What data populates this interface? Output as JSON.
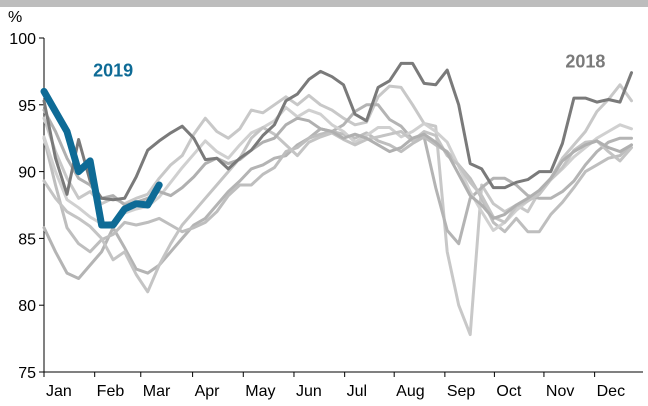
{
  "chart_data": {
    "type": "line",
    "unit_label": "%",
    "ylim": [
      75,
      100
    ],
    "yticks": [
      75,
      80,
      85,
      90,
      95,
      100
    ],
    "xlim": [
      0,
      52
    ],
    "x_unit": "week of year",
    "month_labels": [
      "Jan",
      "Feb",
      "Mar",
      "Apr",
      "May",
      "Jun",
      "Jul",
      "Aug",
      "Sep",
      "Oct",
      "Nov",
      "Dec"
    ],
    "month_positions": [
      0,
      4.4,
      8.4,
      12.9,
      17.3,
      21.7,
      26.1,
      30.4,
      34.8,
      39.1,
      43.4,
      47.8
    ],
    "grid": false,
    "annotations": [
      {
        "text": "2019",
        "color": "#0e6b96",
        "x": 6,
        "y": 97.1
      },
      {
        "text": "2018",
        "color": "#7a7a7a",
        "x": 47,
        "y": 97.8
      }
    ],
    "series": [
      {
        "color": "#0e6b96",
        "width": 7,
        "values": [
          96.0,
          94.5,
          93.0,
          90.0,
          90.8,
          86.0,
          86.0,
          87.2,
          87.6,
          87.5,
          89.0
        ]
      },
      {
        "color": "#7a7a7a",
        "width": 3,
        "values": [
          95.3,
          91.0,
          88.3,
          92.4,
          89.3,
          88.0,
          87.9,
          88.0,
          89.6,
          91.6,
          92.3,
          92.9,
          93.4,
          92.5,
          90.9,
          91.0,
          90.2,
          91.0,
          91.6,
          92.7,
          93.5,
          95.3,
          95.8,
          96.9,
          97.5,
          97.1,
          96.5,
          94.3,
          93.8,
          96.3,
          96.8,
          98.1,
          98.1,
          96.6,
          96.5,
          97.6,
          95.0,
          90.6,
          90.2,
          88.8,
          88.8,
          89.2,
          89.4,
          90.0,
          90.0,
          92.1,
          95.5,
          95.5,
          95.2,
          95.4,
          95.2,
          97.4
        ]
      },
      {
        "color": "#c8c8c8",
        "width": 3,
        "values": [
          94.0,
          91.5,
          89.5,
          88.0,
          88.5,
          87.6,
          88.0,
          87.6,
          88.0,
          88.3,
          89.5,
          90.5,
          91.2,
          92.8,
          94.0,
          93.0,
          92.5,
          93.2,
          94.6,
          94.4,
          95.0,
          95.6,
          95.0,
          95.7,
          95.0,
          94.6,
          94.0,
          93.5,
          93.7,
          95.6,
          96.4,
          96.3,
          95.0,
          93.6,
          93.4,
          84.0,
          80.0,
          77.8,
          89.0,
          87.6,
          87.0,
          87.5,
          87.0,
          88.5,
          89.5,
          91.0,
          92.0,
          93.0,
          94.5,
          95.4,
          96.5,
          95.3
        ]
      },
      {
        "color": "#b4b4b4",
        "width": 3,
        "values": [
          85.8,
          84.0,
          82.4,
          82.0,
          83.0,
          84.0,
          85.8,
          84.3,
          82.7,
          82.4,
          83.0,
          84.0,
          85.0,
          86.0,
          86.5,
          87.5,
          88.5,
          89.3,
          90.2,
          90.5,
          91.0,
          91.2,
          92.0,
          92.5,
          93.2,
          93.0,
          93.5,
          94.5,
          95.0,
          95.0,
          93.9,
          93.4,
          92.4,
          92.6,
          88.8,
          85.6,
          84.6,
          88.0,
          88.8,
          89.5,
          89.5,
          89.0,
          88.2,
          88.0,
          88.0,
          88.5,
          89.3,
          90.5,
          91.5,
          92.2,
          92.5,
          92.5
        ]
      },
      {
        "color": "#bebebe",
        "width": 3,
        "values": [
          92.5,
          89.0,
          85.8,
          84.6,
          84.0,
          84.9,
          85.3,
          86.2,
          86.0,
          86.2,
          86.5,
          86.0,
          85.5,
          85.8,
          86.2,
          87.0,
          88.2,
          89.0,
          89.0,
          89.8,
          90.3,
          91.5,
          91.8,
          92.5,
          92.8,
          93.0,
          92.8,
          92.5,
          92.9,
          92.3,
          92.0,
          91.5,
          92.1,
          92.6,
          92.0,
          91.5,
          90.5,
          89.5,
          88.0,
          86.2,
          85.5,
          86.5,
          85.5,
          85.5,
          86.8,
          87.7,
          88.8,
          90.0,
          90.5,
          91.0,
          91.2,
          92.0
        ]
      },
      {
        "color": "#d0d0d0",
        "width": 3,
        "values": [
          92.6,
          90.0,
          87.9,
          87.3,
          86.6,
          86.1,
          86.2,
          86.9,
          87.2,
          87.4,
          88.1,
          89.2,
          90.3,
          91.3,
          92.3,
          91.5,
          91.0,
          92.0,
          92.9,
          93.3,
          93.8,
          94.8,
          94.1,
          94.6,
          94.3,
          93.5,
          93.0,
          92.2,
          92.7,
          93.3,
          93.3,
          92.6,
          93.0,
          93.6,
          93.0,
          92.2,
          90.4,
          88.5,
          87.0,
          85.6,
          86.2,
          87.1,
          87.8,
          88.6,
          89.4,
          90.2,
          91.1,
          91.8,
          92.5,
          93.0,
          93.5,
          93.2
        ]
      },
      {
        "color": "#c4c4c4",
        "width": 3,
        "values": [
          89.3,
          88.0,
          87.0,
          86.5,
          85.9,
          85.0,
          83.4,
          84.0,
          82.3,
          81.0,
          83.0,
          84.6,
          86.0,
          87.0,
          88.0,
          89.0,
          90.0,
          91.0,
          92.5,
          93.3,
          92.8,
          92.0,
          91.2,
          92.2,
          92.6,
          92.9,
          92.4,
          92.0,
          92.4,
          92.6,
          92.8,
          93.0,
          92.3,
          93.0,
          92.7,
          91.2,
          90.5,
          89.2,
          88.2,
          86.6,
          86.2,
          87.4,
          87.8,
          88.3,
          89.4,
          90.3,
          91.6,
          92.2,
          92.3,
          91.5,
          90.8,
          91.8
        ]
      },
      {
        "color": "#b0b0b0",
        "width": 3,
        "values": [
          94.6,
          93.0,
          91.0,
          89.5,
          89.0,
          88.0,
          88.2,
          87.5,
          87.7,
          88.0,
          88.5,
          88.2,
          88.8,
          89.6,
          90.6,
          91.0,
          90.6,
          90.9,
          91.6,
          92.2,
          92.5,
          93.5,
          94.0,
          93.8,
          93.2,
          93.0,
          92.5,
          92.8,
          92.5,
          92.0,
          91.5,
          91.8,
          92.5,
          92.8,
          92.2,
          91.4,
          89.8,
          88.2,
          87.5,
          86.5,
          86.8,
          87.5,
          88.0,
          88.6,
          89.5,
          90.8,
          91.5,
          92.0,
          92.3,
          91.8,
          91.5,
          92.0
        ]
      }
    ]
  }
}
